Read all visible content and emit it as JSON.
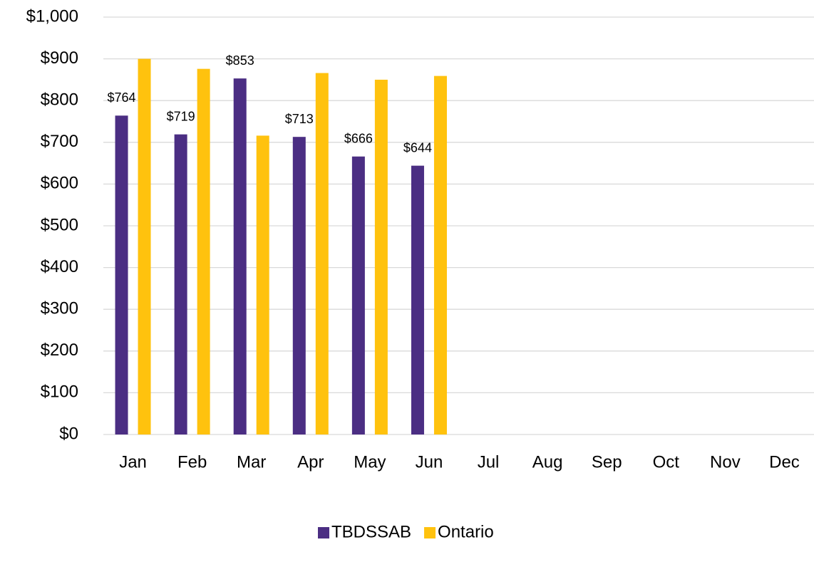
{
  "chart_data": {
    "type": "bar",
    "categories": [
      "Jan",
      "Feb",
      "Mar",
      "Apr",
      "May",
      "Jun",
      "Jul",
      "Aug",
      "Sep",
      "Oct",
      "Nov",
      "Dec"
    ],
    "series": [
      {
        "name": "TBDSSAB",
        "color": "#4b2e83",
        "values": [
          764,
          719,
          853,
          713,
          666,
          644,
          null,
          null,
          null,
          null,
          null,
          null
        ],
        "value_labels": [
          "$764",
          "$719",
          "$853",
          "$713",
          "$666",
          "$644",
          null,
          null,
          null,
          null,
          null,
          null
        ]
      },
      {
        "name": "Ontario",
        "color": "#ffc20e",
        "values": [
          900,
          876,
          716,
          866,
          850,
          859,
          null,
          null,
          null,
          null,
          null,
          null
        ]
      }
    ],
    "ylim": [
      0,
      1000
    ],
    "yticks": [
      {
        "value": 0,
        "label": "$0"
      },
      {
        "value": 100,
        "label": "$100"
      },
      {
        "value": 200,
        "label": "$200"
      },
      {
        "value": 300,
        "label": "$300"
      },
      {
        "value": 400,
        "label": "$400"
      },
      {
        "value": 500,
        "label": "$500"
      },
      {
        "value": 600,
        "label": "$600"
      },
      {
        "value": 700,
        "label": "$700"
      },
      {
        "value": 800,
        "label": "$800"
      },
      {
        "value": 900,
        "label": "$900"
      },
      {
        "value": 1000,
        "label": "$1,000"
      }
    ],
    "grid": true,
    "legend": "bottom"
  }
}
